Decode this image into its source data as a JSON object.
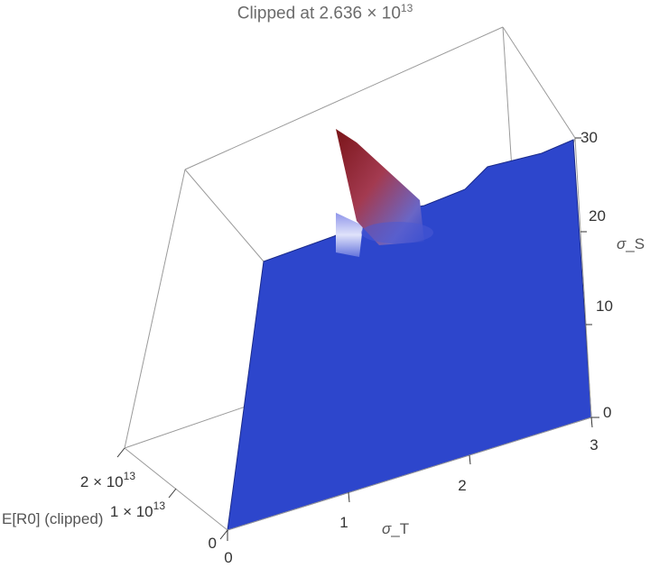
{
  "chart_data": {
    "type": "surface",
    "title": "Clipped at 2.636",
    "title_exponent_base": "× 10",
    "title_exponent": "13",
    "clip_value": 26360000000000.0,
    "x_axis": {
      "label_symbol": "σ",
      "label_suffix": "_T",
      "ticks": [
        "0",
        "1",
        "2",
        "3"
      ],
      "range": [
        0,
        3
      ]
    },
    "y_axis": {
      "label_symbol": "σ",
      "label_suffix": "_S",
      "ticks": [
        "0",
        "10",
        "20",
        "30"
      ],
      "range": [
        0,
        30
      ]
    },
    "z_axis": {
      "label": "E[R0] (clipped)",
      "ticks": [
        "0",
        "1 × 10",
        "2 × 10"
      ],
      "tick_exponent": "13",
      "range": [
        0,
        26360000000000.0
      ]
    },
    "surface_color": "#2d46cc",
    "peak_color": "#7a1418",
    "peak": {
      "sigma_T": 0.35,
      "sigma_S": 28,
      "value": 26360000000000.0
    },
    "secondary_bump": {
      "sigma_T": 0.25,
      "sigma_S": 24,
      "value": 10000000000000.0
    },
    "baseline_value": 0
  }
}
